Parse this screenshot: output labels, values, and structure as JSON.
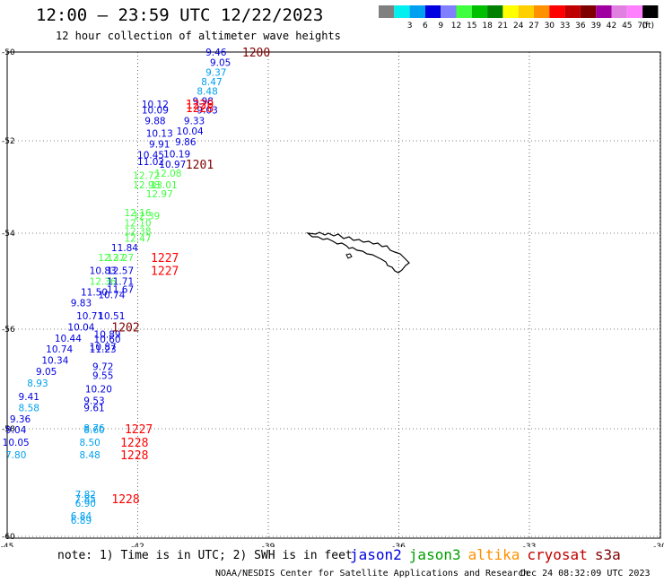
{
  "header": {
    "title": "12:00 – 23:59 UTC 12/22/2023",
    "subtitle": "12 hour collection of altimeter wave heights"
  },
  "legend": {
    "unit_label": "(ft)",
    "bins": [
      {
        "label": "",
        "color": "#808080"
      },
      {
        "label": "3",
        "color": "#00f0f0"
      },
      {
        "label": "6",
        "color": "#00a0f0"
      },
      {
        "label": "9",
        "color": "#0000e0"
      },
      {
        "label": "12",
        "color": "#8080ff"
      },
      {
        "label": "15",
        "color": "#40ff40"
      },
      {
        "label": "18",
        "color": "#00c000"
      },
      {
        "label": "21",
        "color": "#008000"
      },
      {
        "label": "24",
        "color": "#ffff00"
      },
      {
        "label": "27",
        "color": "#ffd000"
      },
      {
        "label": "30",
        "color": "#ff9000"
      },
      {
        "label": "33",
        "color": "#ff0000"
      },
      {
        "label": "36",
        "color": "#c00000"
      },
      {
        "label": "39",
        "color": "#800000"
      },
      {
        "label": "42",
        "color": "#a000a0"
      },
      {
        "label": "45",
        "color": "#e080e0"
      },
      {
        "label": "70",
        "color": "#ff80ff"
      },
      {
        "label": "",
        "color": "#000000"
      }
    ]
  },
  "axes": {
    "lat_labels": [
      "-50",
      "-52",
      "-54",
      "-56",
      "-58",
      "-60"
    ],
    "lon_labels": [
      "-45",
      "-42",
      "-39",
      "-36",
      "-33",
      "-30"
    ]
  },
  "observations": [
    {
      "t": "9.46",
      "lon": -40.2,
      "lat": -50.0,
      "c": "#0000e0"
    },
    {
      "t": "9.05",
      "lon": -40.1,
      "lat": -50.23,
      "c": "#0000e0"
    },
    {
      "t": "9.37",
      "lon": -40.2,
      "lat": -50.45,
      "c": "#00a0f0"
    },
    {
      "t": "8.47",
      "lon": -40.3,
      "lat": -50.67,
      "c": "#00a0f0"
    },
    {
      "t": "8.48",
      "lon": -40.4,
      "lat": -50.88,
      "c": "#00a0f0"
    },
    {
      "t": "9.98",
      "lon": -40.5,
      "lat": -51.1,
      "c": "#0000e0"
    },
    {
      "t": "10.12",
      "lon": -41.6,
      "lat": -51.17,
      "c": "#0000e0"
    },
    {
      "t": "10.09",
      "lon": -41.6,
      "lat": -51.3,
      "c": "#0000e0"
    },
    {
      "t": "9.03",
      "lon": -40.4,
      "lat": -51.3,
      "c": "#0000e0"
    },
    {
      "t": "9.88",
      "lon": -41.6,
      "lat": -51.55,
      "c": "#0000e0"
    },
    {
      "t": "9.33",
      "lon": -40.7,
      "lat": -51.55,
      "c": "#0000e0"
    },
    {
      "t": "10.13",
      "lon": -41.5,
      "lat": -51.83,
      "c": "#0000e0"
    },
    {
      "t": "10.04",
      "lon": -40.8,
      "lat": -51.78,
      "c": "#0000e0"
    },
    {
      "t": "9.91",
      "lon": -41.5,
      "lat": -52.07,
      "c": "#0000e0"
    },
    {
      "t": "9.86",
      "lon": -40.9,
      "lat": -52.02,
      "c": "#0000e0"
    },
    {
      "t": "10.45",
      "lon": -41.7,
      "lat": -52.3,
      "c": "#0000e0"
    },
    {
      "t": "10.19",
      "lon": -41.1,
      "lat": -52.28,
      "c": "#0000e0"
    },
    {
      "t": "11.02",
      "lon": -41.7,
      "lat": -52.45,
      "c": "#0000e0"
    },
    {
      "t": "10.97",
      "lon": -41.2,
      "lat": -52.5,
      "c": "#0000e0"
    },
    {
      "t": "12.72",
      "lon": -41.8,
      "lat": -52.75,
      "c": "#40ff40"
    },
    {
      "t": "12.08",
      "lon": -41.3,
      "lat": -52.7,
      "c": "#40ff40"
    },
    {
      "t": "12.98",
      "lon": -41.8,
      "lat": -52.95,
      "c": "#40ff40"
    },
    {
      "t": "13.01",
      "lon": -41.4,
      "lat": -52.95,
      "c": "#40ff40"
    },
    {
      "t": "12.97",
      "lon": -41.5,
      "lat": -53.15,
      "c": "#40ff40"
    },
    {
      "t": "12.16",
      "lon": -42.0,
      "lat": -53.55,
      "c": "#40ff40"
    },
    {
      "t": "12.39",
      "lon": -41.8,
      "lat": -53.62,
      "c": "#40ff40"
    },
    {
      "t": "12.10",
      "lon": -42.0,
      "lat": -53.78,
      "c": "#40ff40"
    },
    {
      "t": "12.38",
      "lon": -42.0,
      "lat": -53.95,
      "c": "#40ff40"
    },
    {
      "t": "12.47",
      "lon": -42.0,
      "lat": -54.1,
      "c": "#40ff40"
    },
    {
      "t": "11.84",
      "lon": -42.3,
      "lat": -54.3,
      "c": "#0000e0"
    },
    {
      "t": "12.37",
      "lon": -42.6,
      "lat": -54.5,
      "c": "#40ff40"
    },
    {
      "t": "12.27",
      "lon": -42.4,
      "lat": -54.5,
      "c": "#40ff40"
    },
    {
      "t": "10.83",
      "lon": -42.8,
      "lat": -54.78,
      "c": "#0000e0"
    },
    {
      "t": "12.57",
      "lon": -42.4,
      "lat": -54.78,
      "c": "#0000e0"
    },
    {
      "t": "12.36",
      "lon": -42.8,
      "lat": -55.0,
      "c": "#40ff40"
    },
    {
      "t": "11.71",
      "lon": -42.4,
      "lat": -55.0,
      "c": "#0000e0"
    },
    {
      "t": "11.50",
      "lon": -43.0,
      "lat": -55.22,
      "c": "#0000e0"
    },
    {
      "t": "11.67",
      "lon": -42.4,
      "lat": -55.17,
      "c": "#0000e0"
    },
    {
      "t": "10.74",
      "lon": -42.6,
      "lat": -55.28,
      "c": "#0000e0"
    },
    {
      "t": "9.83",
      "lon": -43.3,
      "lat": -55.45,
      "c": "#0000e0"
    },
    {
      "t": "10.71",
      "lon": -43.1,
      "lat": -55.72,
      "c": "#0000e0"
    },
    {
      "t": "10.51",
      "lon": -42.6,
      "lat": -55.72,
      "c": "#0000e0"
    },
    {
      "t": "10.04",
      "lon": -43.3,
      "lat": -55.95,
      "c": "#0000e0"
    },
    {
      "t": "10.44",
      "lon": -43.6,
      "lat": -56.18,
      "c": "#0000e0"
    },
    {
      "t": "10.89",
      "lon": -42.7,
      "lat": -56.1,
      "c": "#0000e0"
    },
    {
      "t": "10.60",
      "lon": -42.7,
      "lat": -56.2,
      "c": "#0000e0"
    },
    {
      "t": "10.74",
      "lon": -43.8,
      "lat": -56.4,
      "c": "#0000e0"
    },
    {
      "t": "10.87",
      "lon": -42.8,
      "lat": -56.35,
      "c": "#0000e0"
    },
    {
      "t": "11.23",
      "lon": -42.8,
      "lat": -56.4,
      "c": "#0000e0"
    },
    {
      "t": "10.34",
      "lon": -43.9,
      "lat": -56.62,
      "c": "#0000e0"
    },
    {
      "t": "9.05",
      "lon": -44.1,
      "lat": -56.85,
      "c": "#0000e0"
    },
    {
      "t": "9.72",
      "lon": -42.8,
      "lat": -56.75,
      "c": "#0000e0"
    },
    {
      "t": "9.55",
      "lon": -42.8,
      "lat": -56.93,
      "c": "#0000e0"
    },
    {
      "t": "8.93",
      "lon": -44.3,
      "lat": -57.08,
      "c": "#00a0f0"
    },
    {
      "t": "10.20",
      "lon": -42.9,
      "lat": -57.2,
      "c": "#0000e0"
    },
    {
      "t": "9.41",
      "lon": -44.5,
      "lat": -57.35,
      "c": "#0000e0"
    },
    {
      "t": "9.53",
      "lon": -43.0,
      "lat": -57.43,
      "c": "#0000e0"
    },
    {
      "t": "8.58",
      "lon": -44.5,
      "lat": -57.58,
      "c": "#00a0f0"
    },
    {
      "t": "9.61",
      "lon": -43.0,
      "lat": -57.58,
      "c": "#0000e0"
    },
    {
      "t": "9.36",
      "lon": -44.7,
      "lat": -57.8,
      "c": "#0000e0"
    },
    {
      "t": "8.76",
      "lon": -43.0,
      "lat": -57.98,
      "c": "#00a0f0"
    },
    {
      "t": "8.60",
      "lon": -43.0,
      "lat": -58.02,
      "c": "#00a0f0"
    },
    {
      "t": "9.04",
      "lon": -44.8,
      "lat": -58.02,
      "c": "#0000e0"
    },
    {
      "t": "10.05",
      "lon": -44.8,
      "lat": -58.25,
      "c": "#0000e0"
    },
    {
      "t": "8.50",
      "lon": -43.1,
      "lat": -58.25,
      "c": "#00a0f0"
    },
    {
      "t": "7.80",
      "lon": -44.8,
      "lat": -58.48,
      "c": "#00a0f0"
    },
    {
      "t": "8.48",
      "lon": -43.1,
      "lat": -58.48,
      "c": "#00a0f0"
    },
    {
      "t": "7.82",
      "lon": -43.2,
      "lat": -59.22,
      "c": "#00a0f0"
    },
    {
      "t": "7.85",
      "lon": -43.2,
      "lat": -59.3,
      "c": "#00a0f0"
    },
    {
      "t": "6.90",
      "lon": -43.2,
      "lat": -59.38,
      "c": "#00a0f0"
    },
    {
      "t": "6.84",
      "lon": -43.3,
      "lat": -59.62,
      "c": "#00a0f0"
    },
    {
      "t": "6.89",
      "lon": -43.3,
      "lat": -59.7,
      "c": "#00a0f0"
    }
  ],
  "pass_times": [
    {
      "t": "1200",
      "lon": -39.6,
      "lat": -50.0,
      "c": "#800000"
    },
    {
      "t": "1229",
      "lon": -40.9,
      "lat": -51.17,
      "c": "#ff0000"
    },
    {
      "t": "1228",
      "lon": -40.9,
      "lat": -51.25,
      "c": "#ff0000"
    },
    {
      "t": "1201",
      "lon": -40.9,
      "lat": -52.5,
      "c": "#800000"
    },
    {
      "t": "1227",
      "lon": -41.7,
      "lat": -54.5,
      "c": "#ff0000"
    },
    {
      "t": "1227",
      "lon": -41.7,
      "lat": -54.78,
      "c": "#ff0000"
    },
    {
      "t": "1202",
      "lon": -42.6,
      "lat": -55.95,
      "c": "#800000"
    },
    {
      "t": "1227",
      "lon": -42.3,
      "lat": -58.0,
      "c": "#ff0000"
    },
    {
      "t": "1228",
      "lon": -42.4,
      "lat": -58.25,
      "c": "#ff0000"
    },
    {
      "t": "1228",
      "lon": -42.4,
      "lat": -58.48,
      "c": "#ff0000"
    },
    {
      "t": "1228",
      "lon": -42.6,
      "lat": -59.3,
      "c": "#ff0000"
    }
  ],
  "footer": {
    "note": "note: 1) Time is in UTC; 2) SWH is in feet",
    "satellites": [
      {
        "name": "jason2",
        "color": "#0000e0"
      },
      {
        "name": "jason3",
        "color": "#00a000"
      },
      {
        "name": "altika",
        "color": "#ff9000"
      },
      {
        "name": "cryosat",
        "color": "#c00000"
      },
      {
        "name": "s3a",
        "color": "#800000"
      }
    ],
    "credit": "NOAA/NESDIS Center for Satellite Applications and Research",
    "generated": "Dec 24 08:32:09 UTC 2023"
  }
}
